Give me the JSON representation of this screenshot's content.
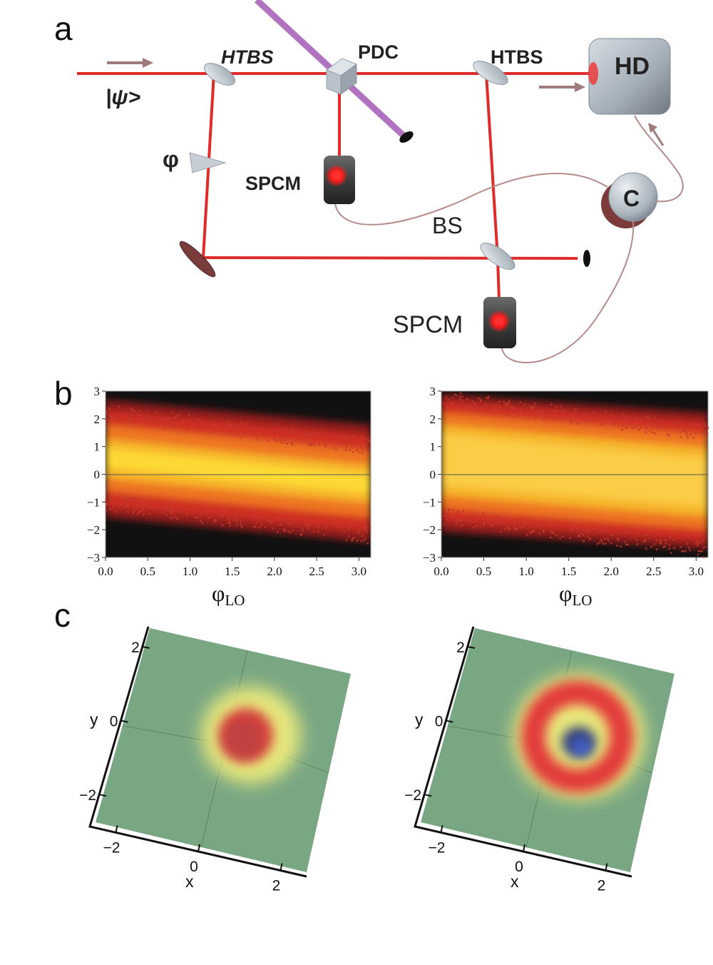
{
  "panels": {
    "a": "a",
    "b": "b",
    "c": "c"
  },
  "setup": {
    "input_state": "|ψ>",
    "htbs_left": "HTBS",
    "pdc": "PDC",
    "htbs_right": "HTBS",
    "hd": "HD",
    "phase": "φ",
    "spcm_top": "SPCM",
    "bs": "BS",
    "spcm_bottom": "SPCM",
    "coincidence": "C",
    "colors": {
      "beam": "#e02b2b",
      "pump": "#a45bb6",
      "optic": "#b9c2cc",
      "detector_glow": "#ff2a2a"
    }
  },
  "plots_b": {
    "x_label": "φ",
    "x_label_sub": "LO",
    "x_ticks": [
      "0.0",
      "0.5",
      "1.0",
      "1.5",
      "2.0",
      "2.5",
      "3.0"
    ],
    "y_ticks": [
      "3",
      "2",
      "1",
      "0",
      "−1",
      "−2",
      "−3"
    ]
  },
  "chart_data": [
    {
      "type": "heatmap",
      "xlabel": "φLO",
      "xlim": [
        0.0,
        3.14
      ],
      "ylim": [
        -3,
        3
      ],
      "band_center": [
        [
          0.0,
          0.6
        ],
        [
          1.57,
          0.0
        ],
        [
          3.14,
          -0.6
        ]
      ],
      "band_halfwidth": 1.5,
      "colormap": [
        "#111111",
        "#b2221e",
        "#f08a25",
        "#ffe23a"
      ]
    },
    {
      "type": "heatmap",
      "xlabel": "φLO",
      "xlim": [
        0.0,
        3.14
      ],
      "ylim": [
        -3,
        3
      ],
      "band_center": [
        [
          0.0,
          0.6
        ],
        [
          1.57,
          0.0
        ],
        [
          3.14,
          -0.6
        ]
      ],
      "band_halfwidth": 2.0,
      "colormap": [
        "#111111",
        "#b2221e",
        "#f08a25",
        "#ffe23a"
      ]
    }
  ],
  "plots_c": {
    "x_label": "x",
    "y_label": "y",
    "x_ticks": [
      "−2",
      "0",
      "2"
    ],
    "y_ticks": [
      "2",
      "0",
      "−2"
    ],
    "colors": {
      "background": "#7aa783",
      "ring": "#e23b3b",
      "halo": "#f2ef7c",
      "dip": "#3c5fd8"
    }
  }
}
